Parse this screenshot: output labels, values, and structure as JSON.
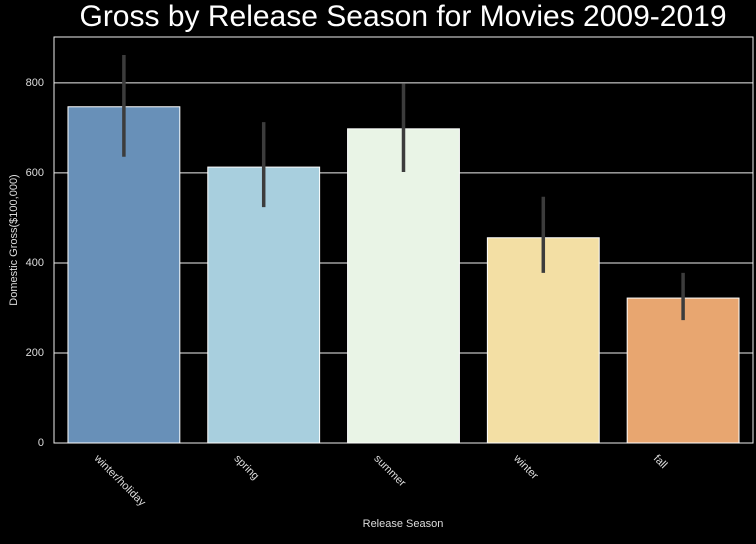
{
  "chart_data": {
    "type": "bar",
    "title": "Gross by Release Season for Movies 2009-2019",
    "x_label": "Release Season",
    "y_label": "Domestic Gross($100,000)",
    "categories": [
      "winter/holiday",
      "spring",
      "summer",
      "winter",
      "fall"
    ],
    "values": [
      747,
      613,
      698,
      456,
      322
    ],
    "ci_low": [
      636,
      524,
      602,
      378,
      273
    ],
    "ci_high": [
      862,
      713,
      798,
      547,
      378
    ],
    "colors": [
      "#6890b8",
      "#a8cfde",
      "#e9f4e6",
      "#f3dfa4",
      "#e8a670"
    ],
    "ylim": [
      0,
      902
    ],
    "yticks": [
      0,
      200,
      400,
      600,
      800
    ],
    "grid": true
  }
}
